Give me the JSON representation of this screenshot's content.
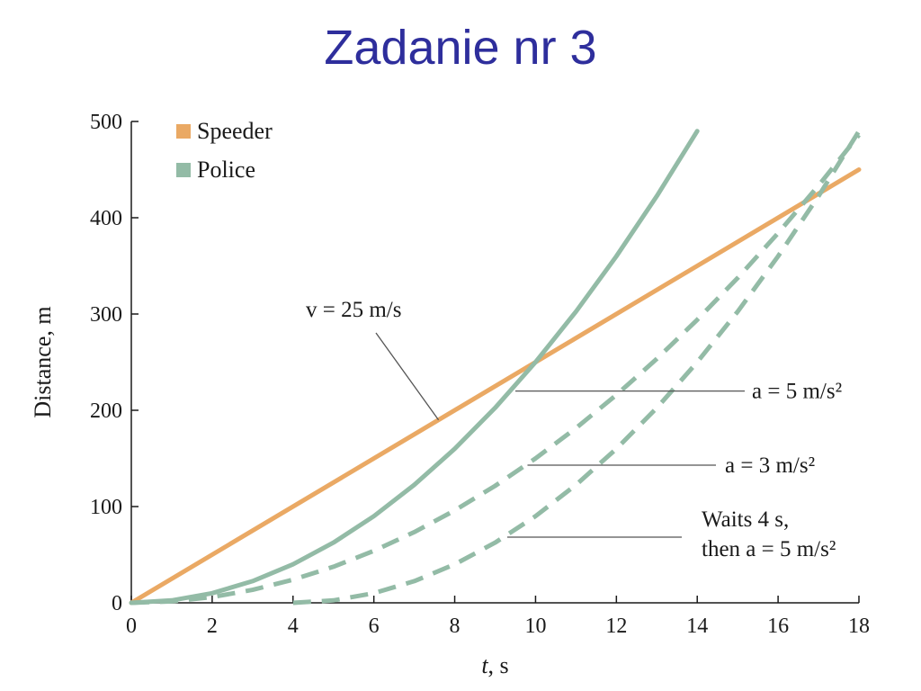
{
  "slide": {
    "title": "Zadanie nr 3"
  },
  "chart_data": {
    "type": "line",
    "xlabel_var": "t",
    "xlabel_unit": ", s",
    "ylabel": "Distance, m",
    "xlim": [
      0,
      18
    ],
    "ylim": [
      0,
      500
    ],
    "xticks": [
      0,
      2,
      4,
      6,
      8,
      10,
      12,
      14,
      16,
      18
    ],
    "yticks": [
      0,
      100,
      200,
      300,
      400,
      500
    ],
    "grid": false,
    "legend_position": "top-left",
    "colors": {
      "speeder": "#eaa964",
      "police": "#93bba6",
      "axis": "#1a1a1a",
      "leader": "#555555",
      "title": "#2e2e9c"
    },
    "legend": [
      {
        "label": "Speeder",
        "color": "#eaa964"
      },
      {
        "label": "Police",
        "color": "#93bba6"
      }
    ],
    "series": [
      {
        "name": "Speeder",
        "style": "solid",
        "color": "#eaa964",
        "x": [
          0,
          18
        ],
        "y": [
          0,
          450
        ]
      },
      {
        "name": "Police",
        "style": "solid",
        "color": "#93bba6",
        "x": [
          0,
          1,
          2,
          3,
          4,
          5,
          6,
          7,
          8,
          9,
          10,
          11,
          12,
          13,
          14
        ],
        "y": [
          0,
          2.5,
          10,
          22.5,
          40,
          62.5,
          90,
          122.5,
          160,
          202.5,
          250,
          302.5,
          360,
          422.5,
          490
        ]
      },
      {
        "name": "Police",
        "style": "dashed",
        "color": "#93bba6",
        "x": [
          0,
          1,
          2,
          3,
          4,
          5,
          6,
          7,
          8,
          9,
          10,
          11,
          12,
          13,
          14,
          15,
          16,
          17,
          18
        ],
        "y": [
          0,
          1.5,
          6,
          13.5,
          24,
          37.5,
          54,
          73.5,
          96,
          121.5,
          150,
          181.5,
          216,
          253.5,
          294,
          337.5,
          384,
          433.5,
          486
        ]
      },
      {
        "name": "Police",
        "style": "dashed",
        "color": "#93bba6",
        "x": [
          4,
          5,
          6,
          7,
          8,
          9,
          10,
          11,
          12,
          13,
          14,
          15,
          16,
          17,
          18
        ],
        "y": [
          0,
          2.5,
          10,
          22.5,
          40,
          62.5,
          90,
          122.5,
          160,
          202.5,
          250,
          302.5,
          360,
          422.5,
          490
        ]
      }
    ],
    "annotations": [
      {
        "text": "v = 25 m/s",
        "points_to": [
          7.6,
          190
        ]
      },
      {
        "text": "a = 5 m/s²",
        "points_to": [
          9.5,
          220
        ]
      },
      {
        "text": "a = 3 m/s²",
        "points_to": [
          9.8,
          143
        ]
      },
      {
        "text": "Waits 4 s,",
        "text2": "then a = 5 m/s²",
        "points_to": [
          9.3,
          66
        ]
      }
    ]
  }
}
